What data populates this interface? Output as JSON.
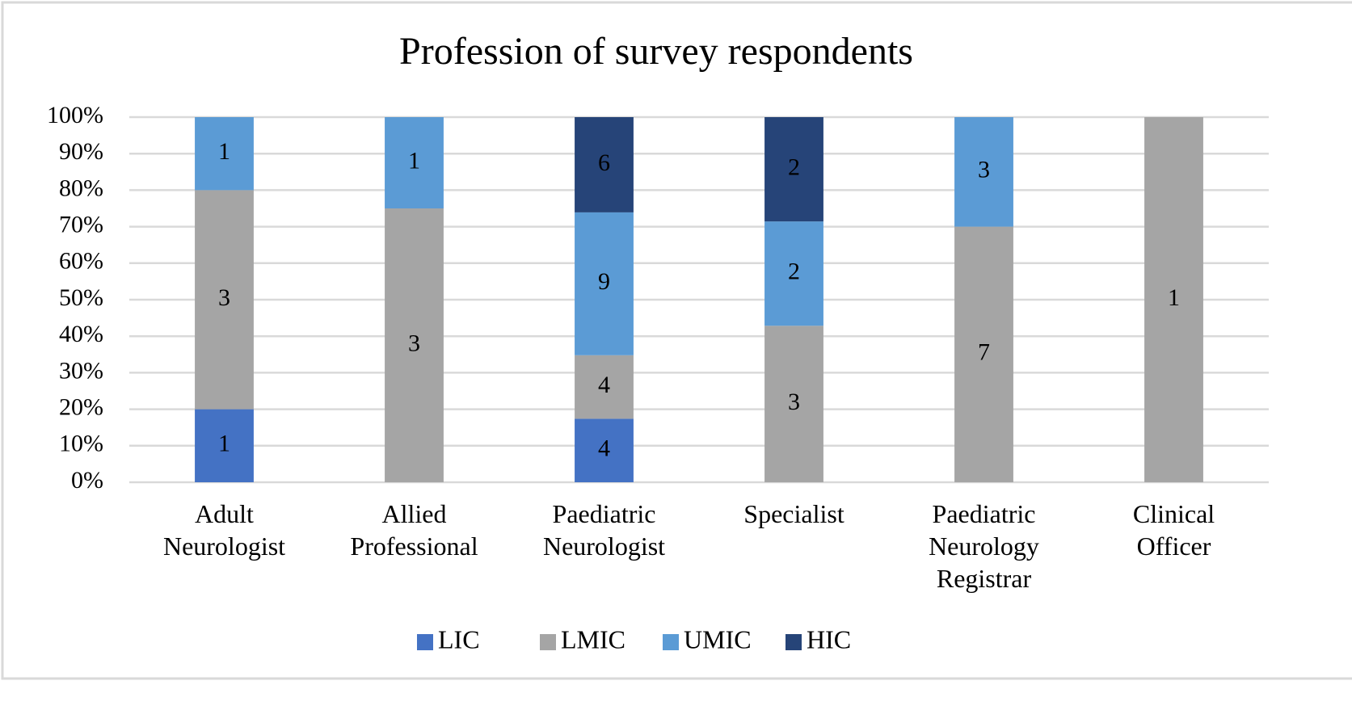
{
  "chart_data": {
    "type": "bar",
    "stacking": "percent",
    "title": "Profession of survey respondents",
    "categories": [
      "Adult Neurologist",
      "Allied Professional",
      "Paediatric Neurologist",
      "Specialist",
      "Paediatric Neurology Registrar",
      "Clinical Officer"
    ],
    "series": [
      {
        "name": "LIC",
        "color": "#4472c4",
        "values": [
          1,
          null,
          4,
          null,
          null,
          null
        ]
      },
      {
        "name": "LMIC",
        "color": "#a5a5a5",
        "values": [
          3,
          3,
          4,
          3,
          7,
          1
        ]
      },
      {
        "name": "UMIC",
        "color": "#5b9bd5",
        "values": [
          1,
          1,
          9,
          2,
          3,
          null
        ]
      },
      {
        "name": "HIC",
        "color": "#264478",
        "values": [
          null,
          null,
          6,
          2,
          null,
          null
        ]
      }
    ],
    "ylim": [
      0,
      100
    ],
    "yticks": [
      {
        "value": 0,
        "label": "0%"
      },
      {
        "value": 10,
        "label": "10%"
      },
      {
        "value": 20,
        "label": "20%"
      },
      {
        "value": 30,
        "label": "30%"
      },
      {
        "value": 40,
        "label": "40%"
      },
      {
        "value": 50,
        "label": "50%"
      },
      {
        "value": 60,
        "label": "60%"
      },
      {
        "value": 70,
        "label": "70%"
      },
      {
        "value": 80,
        "label": "80%"
      },
      {
        "value": 90,
        "label": "90%"
      },
      {
        "value": 100,
        "label": "100%"
      }
    ],
    "grid": true,
    "legend": "bottom"
  }
}
